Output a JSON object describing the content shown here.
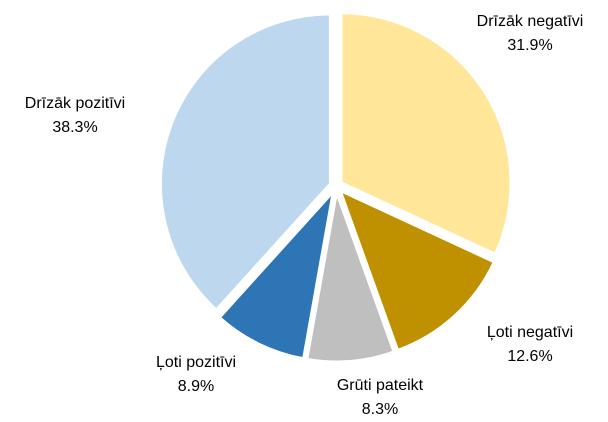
{
  "chart_data": {
    "type": "pie",
    "categories": [
      "Drīzāk negatīvi",
      "Ļoti negatīvi",
      "Grūti pateikt",
      "Ļoti pozitīvi",
      "Drīzāk pozitīvi"
    ],
    "values": [
      31.9,
      12.6,
      8.3,
      8.9,
      38.3
    ],
    "value_labels": [
      "31.9%",
      "12.6%",
      "8.3%",
      "8.9%",
      "38.3%"
    ],
    "colors": [
      "#ffe699",
      "#bf9000",
      "#bfbfbf",
      "#2e75b6",
      "#bdd7ee"
    ]
  }
}
